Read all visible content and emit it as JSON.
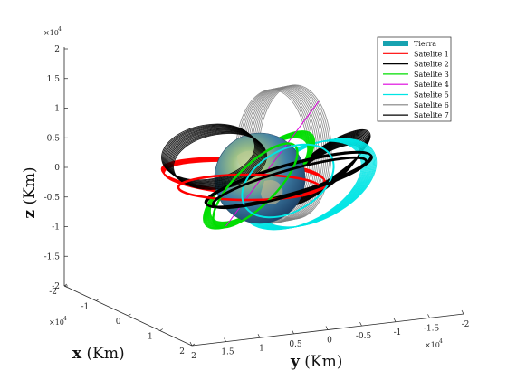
{
  "chart_data": {
    "type": "3d-orbit-plot",
    "title": "",
    "axes": {
      "x": {
        "label_var": "x",
        "label_unit": "(Km)",
        "ticks": [
          "-2",
          "-1",
          "0",
          "1",
          "2"
        ],
        "exponent": "×10",
        "exponent_power": "4",
        "lim": [
          -20000,
          20000
        ]
      },
      "y": {
        "label_var": "y",
        "label_unit": "(Km)",
        "ticks": [
          "2",
          "1.5",
          "1",
          "0.5",
          "0",
          "-0.5",
          "-1",
          "-1.5",
          "-2"
        ],
        "exponent": "×10",
        "exponent_power": "4",
        "lim": [
          20000,
          -20000
        ]
      },
      "z": {
        "label_var": "z",
        "label_unit": "(Km)",
        "ticks": [
          "2",
          "1.5",
          "1",
          "0.5",
          "0",
          "-0.5",
          "-1",
          "-1.5",
          "-2"
        ],
        "exponent": "×10",
        "exponent_power": "4",
        "lim": [
          -20000,
          20000
        ]
      }
    },
    "grid": false,
    "legend_position": "top-right",
    "series": [
      {
        "name": "Tierra",
        "color": "#17a2b0",
        "kind": "sphere"
      },
      {
        "name": "Satelite 1",
        "color": "#ff0000",
        "kind": "orbit-band"
      },
      {
        "name": "Satelite 2",
        "color": "#000000",
        "kind": "orbit-band"
      },
      {
        "name": "Satelite 3",
        "color": "#00dd00",
        "kind": "orbit-band"
      },
      {
        "name": "Satelite 4",
        "color": "#dd00dd",
        "kind": "line"
      },
      {
        "name": "Satelite 5",
        "color": "#00e5e5",
        "kind": "orbit-band"
      },
      {
        "name": "Satelite 6",
        "color": "#808080",
        "kind": "orbit-band"
      },
      {
        "name": "Satelite 7",
        "color": "#000000",
        "kind": "orbit-band"
      }
    ]
  }
}
